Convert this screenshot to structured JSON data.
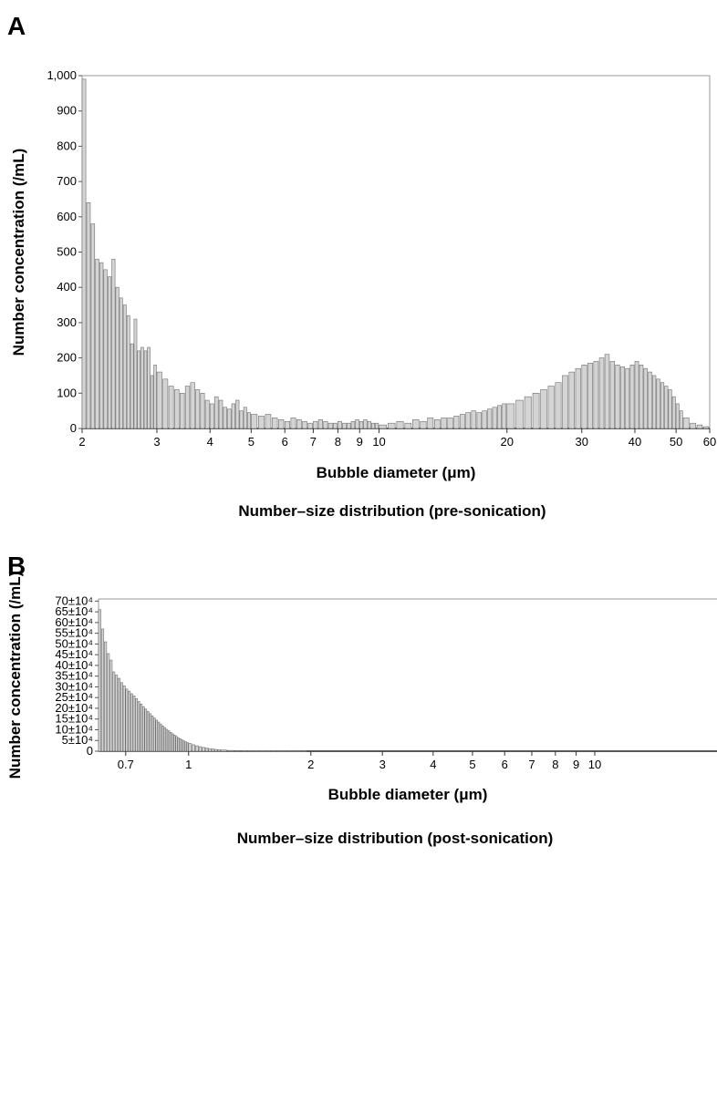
{
  "chart_data": [
    {
      "panel": "A",
      "type": "bar",
      "caption": "Number–size distribution (pre-sonication)",
      "xlabel": "Bubble diameter (μm)",
      "ylabel": "Number concentration (/mL)",
      "xscale": "log",
      "xlim": [
        2,
        60
      ],
      "ylim": [
        0,
        1000
      ],
      "grid": false,
      "bar_color": "#d4d4d4",
      "xticks": [
        {
          "v": 2,
          "label": "2"
        },
        {
          "v": 3,
          "label": "3"
        },
        {
          "v": 4,
          "label": "4"
        },
        {
          "v": 5,
          "label": "5"
        },
        {
          "v": 6,
          "label": "6"
        },
        {
          "v": 7,
          "label": "7"
        },
        {
          "v": 8,
          "label": "8"
        },
        {
          "v": 9,
          "label": "9"
        },
        {
          "v": 10,
          "label": "10"
        },
        {
          "v": 20,
          "label": "20"
        },
        {
          "v": 30,
          "label": "30"
        },
        {
          "v": 40,
          "label": "40"
        },
        {
          "v": 50,
          "label": "50"
        },
        {
          "v": 60,
          "label": "60"
        }
      ],
      "yticks": [
        {
          "v": 0,
          "label": "0"
        },
        {
          "v": 100,
          "label": "100"
        },
        {
          "v": 200,
          "label": "200"
        },
        {
          "v": 300,
          "label": "300"
        },
        {
          "v": 400,
          "label": "400"
        },
        {
          "v": 500,
          "label": "500"
        },
        {
          "v": 600,
          "label": "600"
        },
        {
          "v": 700,
          "label": "700"
        },
        {
          "v": 800,
          "label": "800"
        },
        {
          "v": 900,
          "label": "900"
        },
        {
          "v": 1000,
          "label": "1,000"
        }
      ],
      "x": [
        2.0,
        2.05,
        2.1,
        2.15,
        2.2,
        2.25,
        2.3,
        2.35,
        2.4,
        2.45,
        2.5,
        2.55,
        2.6,
        2.65,
        2.7,
        2.75,
        2.8,
        2.85,
        2.9,
        2.95,
        3.0,
        3.1,
        3.2,
        3.3,
        3.4,
        3.5,
        3.6,
        3.7,
        3.8,
        3.9,
        4.0,
        4.1,
        4.2,
        4.3,
        4.4,
        4.5,
        4.6,
        4.7,
        4.8,
        4.9,
        5.0,
        5.2,
        5.4,
        5.6,
        5.8,
        6.0,
        6.2,
        6.4,
        6.6,
        6.8,
        7.0,
        7.2,
        7.4,
        7.6,
        7.8,
        8.0,
        8.2,
        8.4,
        8.6,
        8.8,
        9.0,
        9.2,
        9.4,
        9.6,
        9.8,
        10.0,
        10.5,
        11.0,
        11.5,
        12.0,
        12.5,
        13.0,
        13.5,
        14.0,
        14.5,
        15.0,
        15.5,
        16.0,
        16.5,
        17.0,
        17.5,
        18.0,
        18.5,
        19.0,
        19.5,
        20.0,
        21.0,
        22.0,
        23.0,
        24.0,
        25.0,
        26.0,
        27.0,
        28.0,
        29.0,
        30.0,
        31.0,
        32.0,
        33.0,
        34.0,
        35.0,
        36.0,
        37.0,
        38.0,
        39.0,
        40.0,
        41.0,
        42.0,
        43.0,
        44.0,
        45.0,
        46.0,
        47.0,
        48.0,
        49.0,
        50.0,
        51.0,
        52.0,
        54.0,
        56.0,
        58.0
      ],
      "values": [
        990,
        640,
        580,
        480,
        470,
        450,
        430,
        480,
        400,
        370,
        350,
        320,
        240,
        310,
        220,
        230,
        220,
        230,
        150,
        180,
        160,
        140,
        120,
        110,
        100,
        120,
        130,
        110,
        100,
        80,
        70,
        90,
        80,
        60,
        55,
        70,
        80,
        50,
        60,
        45,
        40,
        35,
        40,
        30,
        25,
        20,
        30,
        25,
        20,
        15,
        20,
        25,
        20,
        15,
        15,
        20,
        15,
        15,
        20,
        25,
        20,
        25,
        20,
        15,
        15,
        10,
        15,
        20,
        15,
        25,
        20,
        30,
        25,
        30,
        30,
        35,
        40,
        45,
        50,
        45,
        50,
        55,
        60,
        65,
        70,
        70,
        80,
        90,
        100,
        110,
        120,
        130,
        150,
        160,
        170,
        180,
        185,
        190,
        200,
        210,
        190,
        180,
        175,
        170,
        180,
        190,
        180,
        170,
        160,
        150,
        140,
        130,
        120,
        110,
        90,
        70,
        50,
        30,
        15,
        10,
        5
      ]
    },
    {
      "panel": "B",
      "type": "bar",
      "caption": "Number–size distribution (post-sonication)",
      "xlabel": "Bubble diameter (μm)",
      "ylabel": "Number concentration (/mL)",
      "xscale": "log",
      "xlim": [
        0.6,
        20
      ],
      "ylim": [
        0,
        710000
      ],
      "grid": false,
      "bar_color": "#d4d4d4",
      "xticks": [
        {
          "v": 0.7,
          "label": "0.7"
        },
        {
          "v": 1,
          "label": "1"
        },
        {
          "v": 2,
          "label": "2"
        },
        {
          "v": 3,
          "label": "3"
        },
        {
          "v": 4,
          "label": "4"
        },
        {
          "v": 5,
          "label": "5"
        },
        {
          "v": 6,
          "label": "6"
        },
        {
          "v": 7,
          "label": "7"
        },
        {
          "v": 8,
          "label": "8"
        },
        {
          "v": 9,
          "label": "9"
        },
        {
          "v": 10,
          "label": "10"
        }
      ],
      "yticks": [
        {
          "v": 0,
          "label": "0"
        },
        {
          "v": 50000,
          "label": "5±10⁴"
        },
        {
          "v": 100000,
          "label": "10±10⁴"
        },
        {
          "v": 150000,
          "label": "15±10⁴"
        },
        {
          "v": 200000,
          "label": "20±10⁴"
        },
        {
          "v": 250000,
          "label": "25±10⁴"
        },
        {
          "v": 300000,
          "label": "30±10⁴"
        },
        {
          "v": 350000,
          "label": "35±10⁴"
        },
        {
          "v": 400000,
          "label": "40±10⁴"
        },
        {
          "v": 450000,
          "label": "45±10⁴"
        },
        {
          "v": 500000,
          "label": "50±10⁴"
        },
        {
          "v": 550000,
          "label": "55±10⁴"
        },
        {
          "v": 600000,
          "label": "60±10⁴"
        },
        {
          "v": 650000,
          "label": "65±10⁴"
        },
        {
          "v": 700000,
          "label": "70±10⁴"
        }
      ],
      "x": [
        0.6,
        0.61,
        0.62,
        0.63,
        0.64,
        0.65,
        0.66,
        0.67,
        0.68,
        0.69,
        0.7,
        0.71,
        0.72,
        0.73,
        0.74,
        0.75,
        0.76,
        0.77,
        0.78,
        0.79,
        0.8,
        0.81,
        0.82,
        0.83,
        0.84,
        0.85,
        0.86,
        0.87,
        0.88,
        0.89,
        0.9,
        0.91,
        0.92,
        0.93,
        0.94,
        0.95,
        0.96,
        0.97,
        0.98,
        0.99,
        1.0,
        1.02,
        1.04,
        1.06,
        1.08,
        1.1,
        1.12,
        1.14,
        1.16,
        1.18,
        1.2,
        1.25,
        1.3,
        1.35,
        1.4,
        1.45,
        1.5,
        1.55,
        1.6,
        1.65,
        1.7,
        1.75,
        1.8,
        1.85,
        1.9
      ],
      "values": [
        660000,
        570000,
        510000,
        455000,
        425000,
        370000,
        355000,
        340000,
        320000,
        305000,
        290000,
        280000,
        268000,
        258000,
        245000,
        232000,
        220000,
        208000,
        197000,
        186000,
        175000,
        165000,
        155000,
        145000,
        136000,
        127000,
        118000,
        110000,
        102000,
        95000,
        88000,
        81000,
        75000,
        69000,
        63000,
        58000,
        53000,
        48000,
        44000,
        40000,
        36000,
        30000,
        25000,
        21000,
        17500,
        14500,
        12000,
        10000,
        8200,
        6700,
        5500,
        3600,
        2400,
        1600,
        1100,
        800,
        600,
        450,
        350,
        280,
        220,
        180,
        150,
        120,
        100
      ]
    }
  ]
}
